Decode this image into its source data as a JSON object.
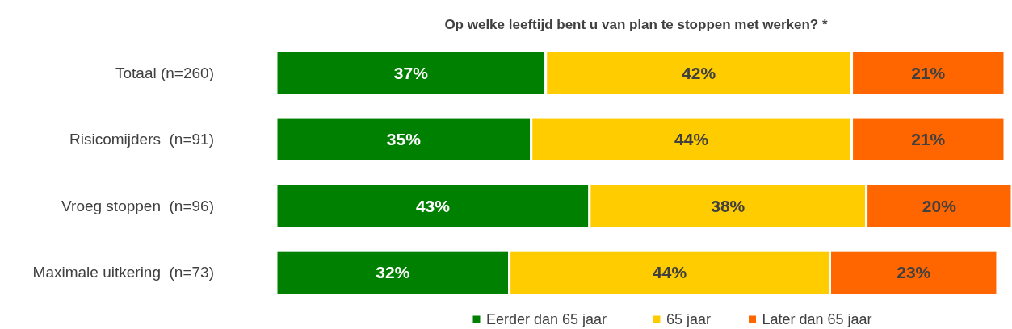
{
  "chart_data": {
    "type": "bar",
    "title": "Op welke leeftijd bent u van plan te stoppen met werken? *",
    "orientation": "horizontal",
    "stacked": true,
    "categories": [
      "Totaal (n=260)",
      "Risicomijders  (n=91)",
      "Vroeg stoppen  (n=96)",
      "Maximale uitkering  (n=73)"
    ],
    "xlim": [
      0,
      101
    ],
    "tick_labels": "y",
    "legend": "bottom",
    "marker": "square",
    "series": [
      {
        "name": "Eerder dan 65 jaar",
        "color": "#008000",
        "values": [
          37,
          35,
          43,
          32
        ],
        "value_labels": [
          "37%",
          "35%",
          "43%",
          "32%"
        ]
      },
      {
        "name": "65 jaar",
        "color": "#ffcc00",
        "values": [
          42,
          44,
          38,
          44
        ],
        "value_labels": [
          "42%",
          "44%",
          "38%",
          "44%"
        ]
      },
      {
        "name": "Later dan 65 jaar",
        "color": "#ff6600",
        "values": [
          21,
          21,
          20,
          23
        ],
        "value_labels": [
          "21%",
          "21%",
          "20%",
          "23%"
        ]
      }
    ]
  }
}
